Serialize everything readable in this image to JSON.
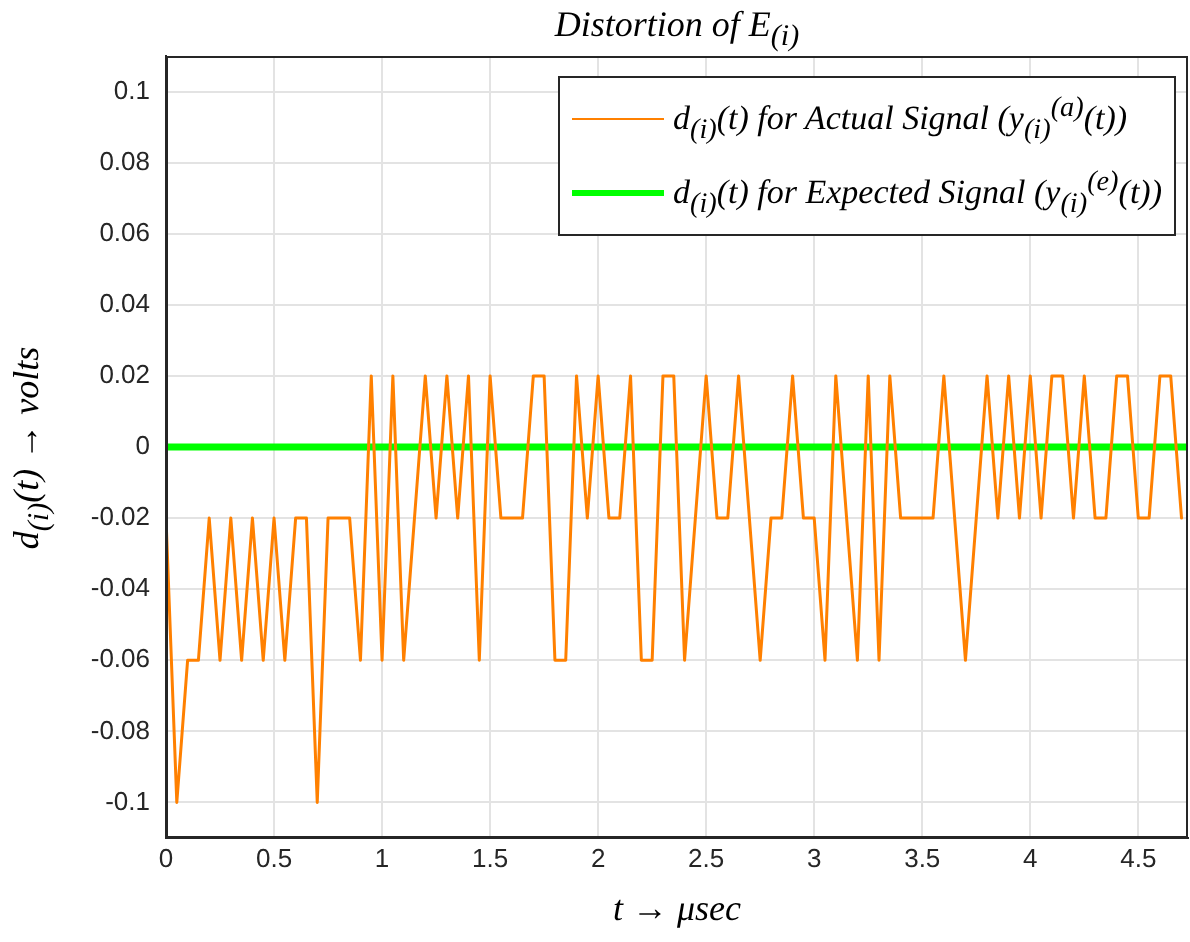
{
  "chart_data": {
    "type": "line",
    "title": "Distortion of E$_{(i)}$",
    "xlabel": "t → μsec",
    "ylabel": "d$_{(i)}$(t) → volts",
    "x": [
      0,
      0.05,
      0.1,
      0.15,
      0.2,
      0.25,
      0.3,
      0.35,
      0.4,
      0.45,
      0.5,
      0.55,
      0.6,
      0.65,
      0.7,
      0.75,
      0.8,
      0.85,
      0.9,
      0.95,
      1,
      1.05,
      1.1,
      1.15,
      1.2,
      1.25,
      1.3,
      1.35,
      1.4,
      1.45,
      1.5,
      1.55,
      1.6,
      1.65,
      1.7,
      1.75,
      1.8,
      1.85,
      1.9,
      1.95,
      2,
      2.05,
      2.1,
      2.15,
      2.2,
      2.25,
      2.3,
      2.35,
      2.4,
      2.45,
      2.5,
      2.55,
      2.6,
      2.65,
      2.7,
      2.75,
      2.8,
      2.85,
      2.9,
      2.95,
      3,
      3.05,
      3.1,
      3.15,
      3.2,
      3.25,
      3.3,
      3.35,
      3.4,
      3.45,
      3.5,
      3.55,
      3.6,
      3.65,
      3.7,
      3.75,
      3.8,
      3.85,
      3.9,
      3.95,
      4,
      4.05,
      4.1,
      4.15,
      4.2,
      4.25,
      4.3,
      4.35,
      4.4,
      4.45,
      4.5,
      4.55,
      4.6,
      4.65,
      4.7
    ],
    "series": [
      {
        "name": "d$_{(i)}$(t) for Actual Signal (y$_{(i)}$$^{(a)}$(t))",
        "color": "#ff8000",
        "values": [
          -0.02,
          -0.1,
          -0.06,
          -0.06,
          -0.02,
          -0.06,
          -0.02,
          -0.06,
          -0.02,
          -0.06,
          -0.02,
          -0.06,
          -0.02,
          -0.02,
          -0.1,
          -0.02,
          -0.02,
          -0.02,
          -0.06,
          0.02,
          -0.06,
          0.02,
          -0.06,
          -0.02,
          0.02,
          -0.02,
          0.02,
          -0.02,
          0.02,
          -0.06,
          0.02,
          -0.02,
          -0.02,
          -0.02,
          0.02,
          0.02,
          -0.06,
          -0.06,
          0.02,
          -0.02,
          0.02,
          -0.02,
          -0.02,
          0.02,
          -0.06,
          -0.06,
          0.02,
          0.02,
          -0.06,
          -0.02,
          0.02,
          -0.02,
          -0.02,
          0.02,
          -0.02,
          -0.06,
          -0.02,
          -0.02,
          0.02,
          -0.02,
          -0.02,
          -0.06,
          0.02,
          -0.02,
          -0.06,
          0.02,
          -0.06,
          0.02,
          -0.02,
          -0.02,
          -0.02,
          -0.02,
          0.02,
          -0.02,
          -0.06,
          -0.02,
          0.02,
          -0.02,
          0.02,
          -0.02,
          0.02,
          -0.02,
          0.02,
          0.02,
          -0.02,
          0.02,
          -0.02,
          -0.02,
          0.02,
          0.02,
          -0.02,
          -0.02,
          0.02,
          0.02,
          -0.02
        ]
      },
      {
        "name": "d$_{(i)}$(t) for Expected Signal (y$_{(i)}$$^{(e)}$(t))",
        "color": "#00ff00",
        "x": [
          0,
          4.73
        ],
        "values": [
          0,
          0
        ]
      }
    ],
    "xlim": [
      0,
      4.73
    ],
    "xticks": [
      0,
      0.5,
      1,
      1.5,
      2,
      2.5,
      3,
      3.5,
      4,
      4.5
    ],
    "ylim": [
      -0.11,
      0.11
    ],
    "yticks": [
      -0.1,
      -0.08,
      -0.06,
      -0.04,
      -0.02,
      0,
      0.02,
      0.04,
      0.06,
      0.08,
      0.1
    ],
    "grid": true,
    "legend": "top right",
    "marker": "none",
    "line_style": "solid"
  }
}
